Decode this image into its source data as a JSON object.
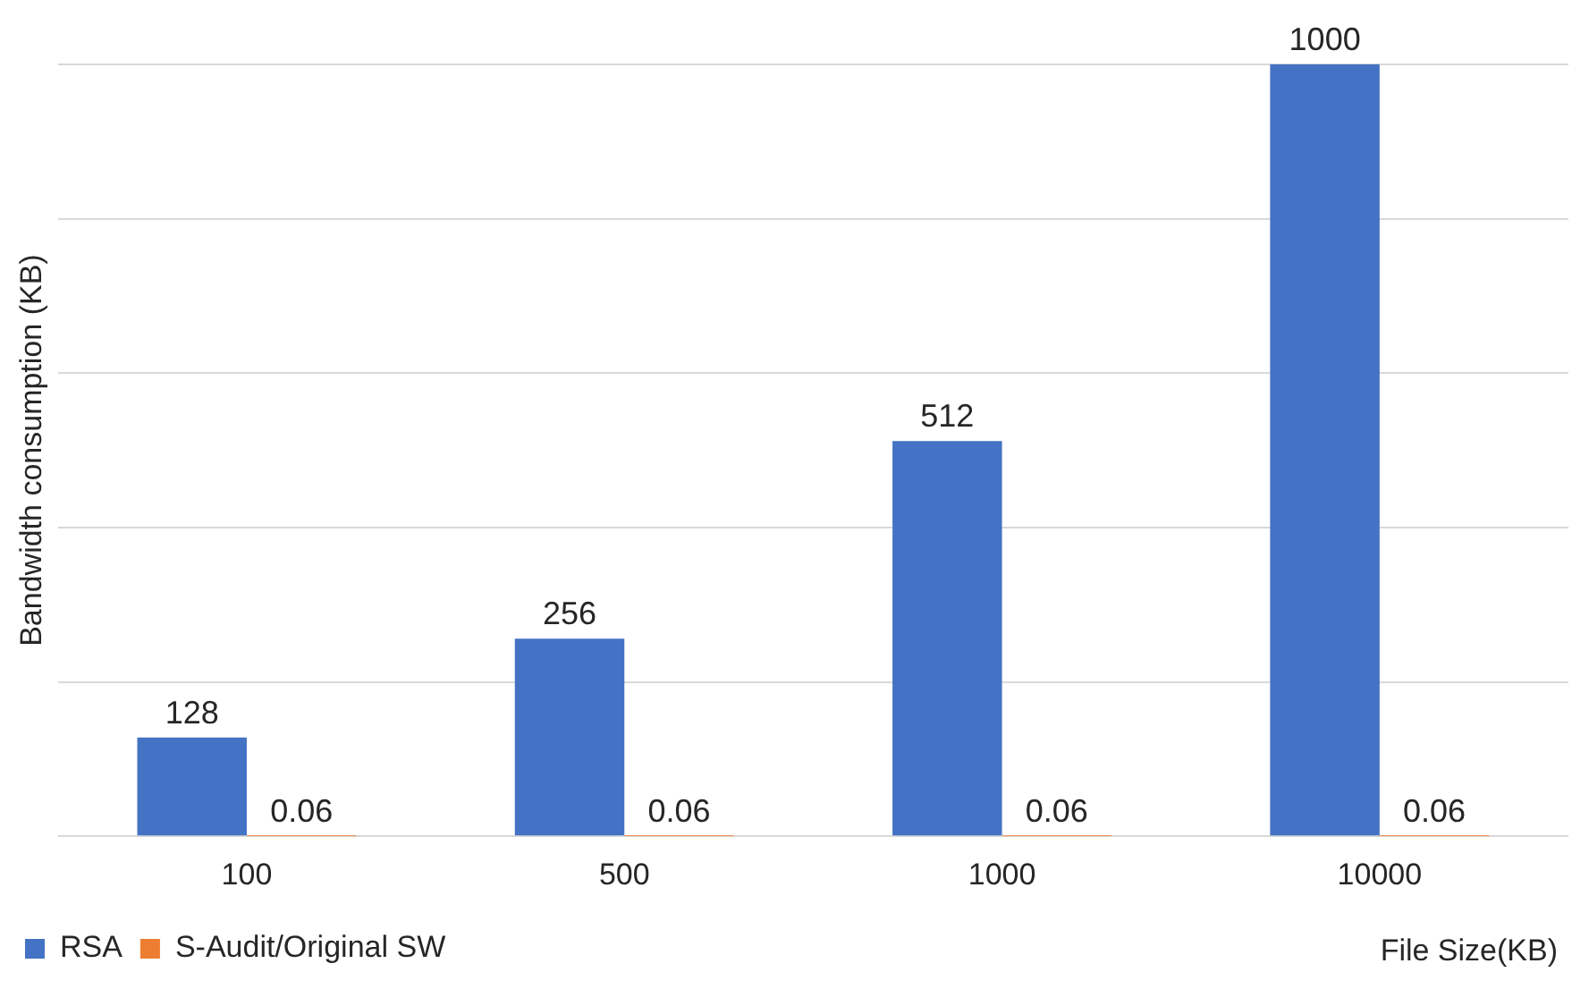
{
  "chart_data": {
    "type": "bar",
    "ylabel": "Bandwidth consumption (KB)",
    "xlabel": "File Size(KB)",
    "categories": [
      "100",
      "500",
      "1000",
      "10000"
    ],
    "series": [
      {
        "name": "RSA",
        "color": "#4472c4",
        "values": [
          128,
          256,
          512,
          1000
        ]
      },
      {
        "name": "S-Audit/Original SW",
        "color": "#ed7d31",
        "values": [
          0.06,
          0.06,
          0.06,
          0.06
        ]
      }
    ],
    "ylim": [
      0,
      1000
    ],
    "yticks": [
      {
        "value": 0,
        "label": null
      },
      {
        "value": 200,
        "label": null
      },
      {
        "value": 400,
        "label": null
      },
      {
        "value": 600,
        "label": null
      },
      {
        "value": 800,
        "label": null
      },
      {
        "value": 1000,
        "label": null
      }
    ],
    "tick_labels": "x",
    "grid": "y",
    "legend": "bottom left",
    "data_labels": true
  }
}
